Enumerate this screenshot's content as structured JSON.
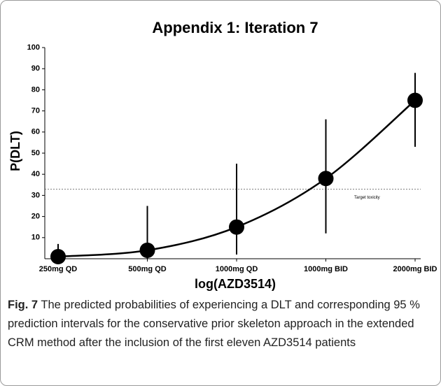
{
  "chart_data": {
    "type": "scatter",
    "title": "Appendix 1: Iteration 7",
    "y_label": "P(DLT)",
    "x_label": "log(AZD3514)",
    "categories": [
      "250mg QD",
      "500mg QD",
      "1000mg QD",
      "1000mg BID",
      "2000mg BID"
    ],
    "values": [
      1,
      4,
      15,
      38,
      75
    ],
    "lower": [
      0,
      0,
      2,
      12,
      53
    ],
    "upper": [
      7,
      25,
      45,
      66,
      88
    ],
    "color": "#000000",
    "ylim": [
      0,
      100
    ],
    "yticks": [
      10,
      20,
      30,
      40,
      50,
      60,
      70,
      80,
      90,
      100
    ],
    "reference_line": {
      "value": 33,
      "label": "Target toxicity"
    }
  },
  "caption": {
    "label": "Fig. 7",
    "text": "The predicted probabilities of experiencing a DLT and corresponding 95 % prediction intervals for the conservative prior skeleton approach in the extended CRM method after the inclusion of the first eleven AZD3514 patients"
  }
}
